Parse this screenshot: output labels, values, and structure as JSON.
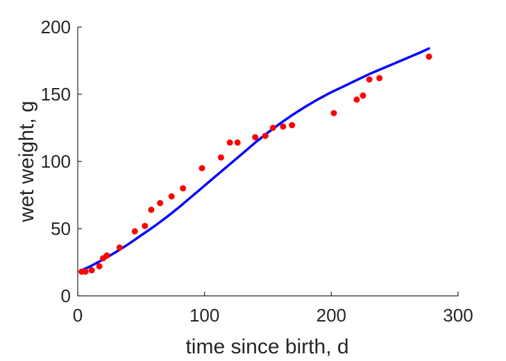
{
  "chart_data": {
    "type": "scatter",
    "title": "",
    "xlabel": "time since birth, d",
    "ylabel": "wet weight, g",
    "xlim": [
      0,
      300
    ],
    "ylim": [
      0,
      200
    ],
    "xticks": [
      0,
      100,
      200,
      300
    ],
    "yticks": [
      0,
      50,
      100,
      150,
      200
    ],
    "grid": false,
    "legend": "none",
    "series": [
      {
        "kind": "scatter",
        "color": "#ff0000",
        "points": [
          [
            3,
            18
          ],
          [
            6,
            18
          ],
          [
            11,
            19
          ],
          [
            17,
            22
          ],
          [
            20,
            28
          ],
          [
            23,
            30
          ],
          [
            33,
            36
          ],
          [
            45,
            48
          ],
          [
            53,
            52
          ],
          [
            58,
            64
          ],
          [
            65,
            69
          ],
          [
            74,
            74
          ],
          [
            83,
            80
          ],
          [
            98,
            95
          ],
          [
            113,
            103
          ],
          [
            120,
            114
          ],
          [
            126,
            114
          ],
          [
            140,
            118
          ],
          [
            148,
            119
          ],
          [
            154,
            125
          ],
          [
            162,
            126
          ],
          [
            169,
            127
          ],
          [
            202,
            136
          ],
          [
            220,
            146
          ],
          [
            225,
            149
          ],
          [
            230,
            161
          ],
          [
            238,
            162
          ],
          [
            277,
            178
          ]
        ]
      },
      {
        "kind": "line",
        "color": "#0000ff",
        "points": [
          [
            3,
            19
          ],
          [
            10,
            22
          ],
          [
            20,
            27
          ],
          [
            30,
            32.5
          ],
          [
            40,
            38.5
          ],
          [
            50,
            45
          ],
          [
            60,
            51.5
          ],
          [
            70,
            58.5
          ],
          [
            80,
            66
          ],
          [
            90,
            74
          ],
          [
            100,
            82
          ],
          [
            110,
            90
          ],
          [
            120,
            98
          ],
          [
            130,
            106
          ],
          [
            140,
            114
          ],
          [
            150,
            121.5
          ],
          [
            160,
            128.5
          ],
          [
            170,
            135
          ],
          [
            180,
            141
          ],
          [
            190,
            146.5
          ],
          [
            200,
            151.5
          ],
          [
            210,
            156
          ],
          [
            220,
            160.5
          ],
          [
            230,
            165
          ],
          [
            240,
            169
          ],
          [
            250,
            173
          ],
          [
            260,
            177
          ],
          [
            270,
            181
          ],
          [
            277,
            184
          ]
        ]
      }
    ]
  }
}
